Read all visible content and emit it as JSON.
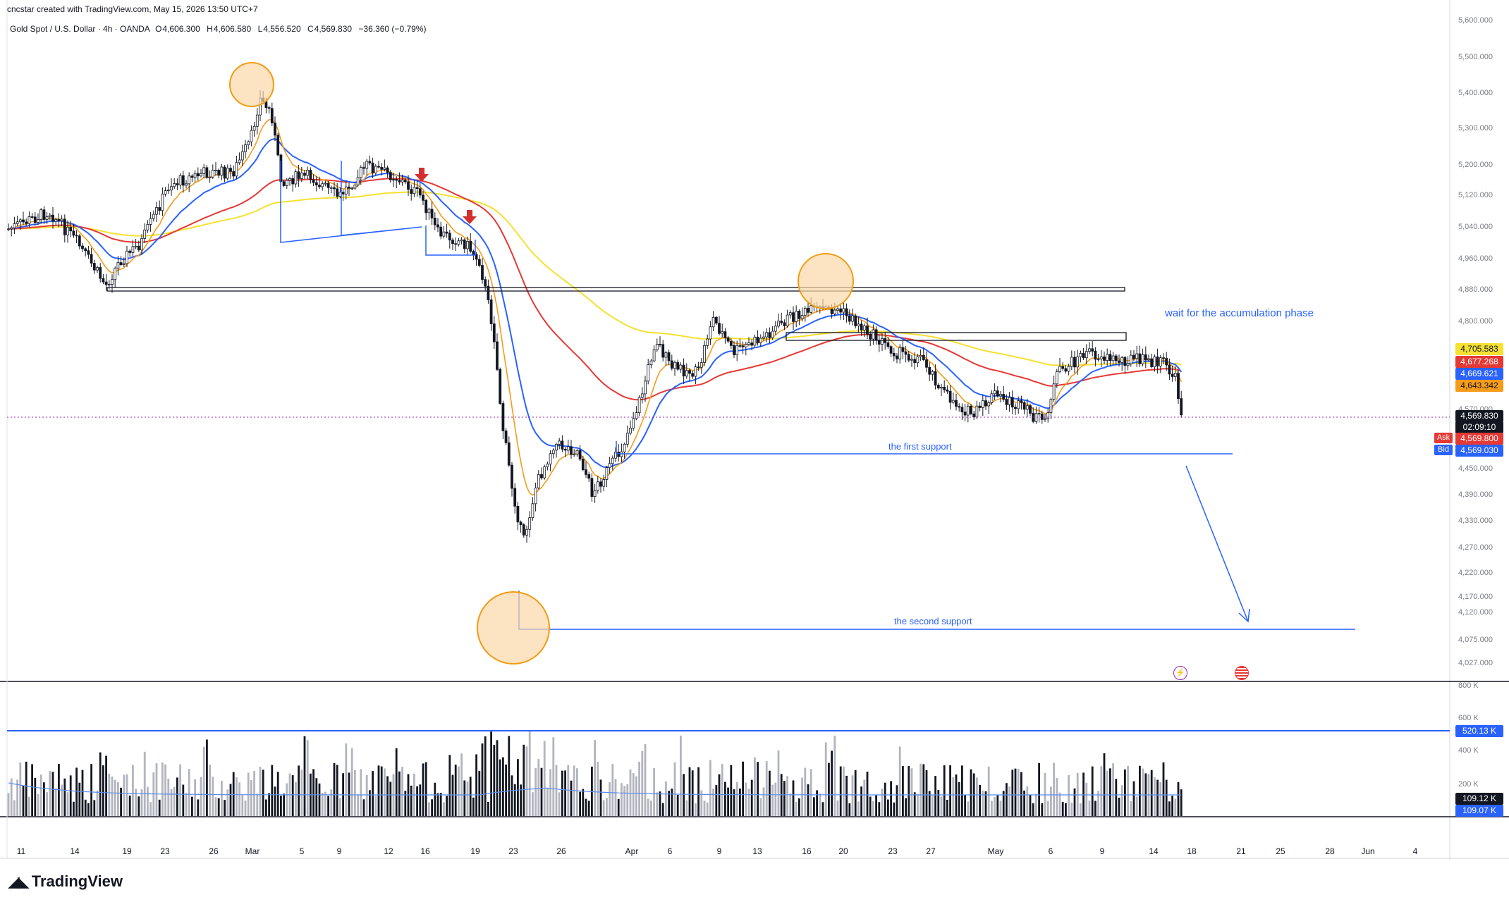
{
  "header": {
    "credit": "cncstar created with TradingView.com, May 15, 2026 13:50 UTC+7"
  },
  "legend": {
    "symbol": "Gold Spot / U.S. Dollar · 4h · OANDA",
    "open_key": "O",
    "open": "4,606.300",
    "high_key": "H",
    "high": "4,606.580",
    "low_key": "L",
    "low": "4,556.520",
    "close_key": "C",
    "close": "4,569.830",
    "change": "−36.360 (−0.79%)"
  },
  "price_axis": {
    "ticks": [
      "5,600.000",
      "5,500.000",
      "5,400.000",
      "5,300.000",
      "5,200.000",
      "5,120.000",
      "5,040.000",
      "4,960.000",
      "4,880.000",
      "4,800.000",
      "4,710.000",
      "4,630.000",
      "4,570.000",
      "4,510.000",
      "4,450.000",
      "4,390.000",
      "4,330.000",
      "4,270.000",
      "4,220.000",
      "4,170.000",
      "4,120.000",
      "4,075.000",
      "4,027.000"
    ]
  },
  "volume_axis": {
    "ticks": [
      "800 K",
      "600 K",
      "400 K",
      "200 K"
    ]
  },
  "badges": {
    "ma200": "4,705.583",
    "ma100": "4,677.268",
    "ema21": "4,669.621",
    "ema9": "4,643.342",
    "last_price": "4,569.830",
    "countdown": "02:09:10",
    "ask_tag": "Ask",
    "ask": "4,569.800",
    "bid_tag": "Bid",
    "bid": "4,569.030",
    "vol_level": "520.13 K",
    "vol_last": "109.12 K",
    "vol_ma": "109.07 K"
  },
  "time_axis": {
    "labels": [
      "11",
      "14",
      "19",
      "23",
      "26",
      "Mar",
      "5",
      "9",
      "12",
      "16",
      "19",
      "23",
      "26",
      "Apr",
      "6",
      "9",
      "13",
      "16",
      "20",
      "23",
      "27",
      "May",
      "6",
      "9",
      "14",
      "18",
      "21",
      "25",
      "28",
      "Jun",
      "4"
    ]
  },
  "annotations": {
    "accumulation": "wait for the accumulation phase",
    "first_support": "the first support",
    "second_support": "the second support"
  },
  "icons": {
    "event_1": "lightning-icon",
    "event_2": "us-flag-icon"
  },
  "colors": {
    "up_candle": "#131722",
    "ema9": "#f59c1a",
    "ema21": "#2962ff",
    "ma100": "#e53935",
    "ma200": "#f5e131",
    "support_line": "#2962ff",
    "circle_fill": "#fbd7a8",
    "circle_stroke": "#f39c12",
    "arrow_marker": "#d32f2f"
  },
  "brand": {
    "logo_text": "TradingView"
  },
  "chart_data": {
    "type": "candlestick",
    "symbol": "XAUUSD",
    "interval": "4h",
    "ylim": [
      4000,
      5620
    ],
    "moving_averages": [
      {
        "name": "EMA 9",
        "last": 4643.342
      },
      {
        "name": "EMA 21",
        "last": 4669.621
      },
      {
        "name": "MA 100",
        "last": 4677.268
      },
      {
        "name": "MA 200",
        "last": 4705.583
      }
    ],
    "last_price": 4569.83,
    "ask": 4569.8,
    "bid": 4569.03,
    "levels": [
      {
        "label": "the first support",
        "price": 4480
      },
      {
        "label": "the second support",
        "price": 4100
      }
    ],
    "volume": {
      "level_line": 520130,
      "last": 109120,
      "ma": 109070
    }
  }
}
